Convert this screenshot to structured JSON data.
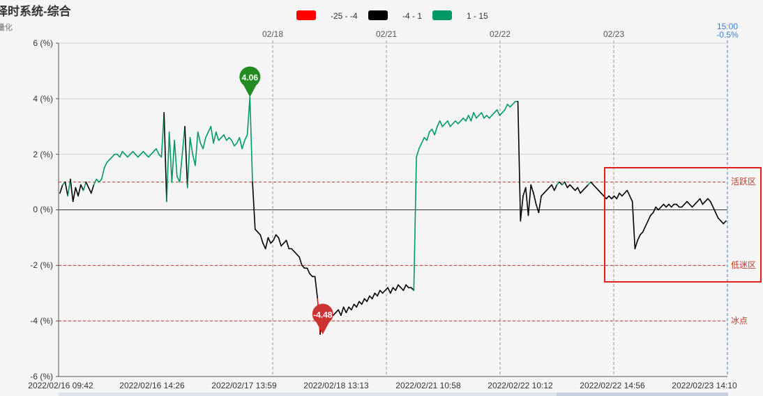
{
  "chart_data": {
    "type": "line",
    "title": "择时系统-综合",
    "subtitle": "量化",
    "legend": {
      "placement": "top-center",
      "items": [
        {
          "label": "-25 - -4",
          "color": "#ff0000"
        },
        {
          "label": "-4 - 1",
          "color": "#000000"
        },
        {
          "label": "1 - 15",
          "color": "#009966"
        }
      ]
    },
    "y_axis": {
      "range": [
        -6,
        6
      ],
      "ticks": [
        6,
        4,
        2,
        0,
        -2,
        -4,
        -6
      ],
      "tick_labels": [
        "6 (%)",
        "4 (%)",
        "2 (%)",
        "0 (%)",
        "-2 (%)",
        "-4 (%)",
        "-6 (%)"
      ]
    },
    "x_axis_labels": [
      "2022/02/16 09:42",
      "2022/02/16 14:26",
      "2022/02/17 13:59",
      "2022/02/18 13:13",
      "2022/02/21 10:58",
      "2022/02/22 10:12",
      "2022/02/22 14:56",
      "2022/02/23 14:10"
    ],
    "top_labels": [
      "02/18",
      "02/21",
      "02/22",
      "02/23"
    ],
    "crosshair": {
      "time": "15:00",
      "value": "-0.5%",
      "color": "#3a7fd5"
    },
    "reference_lines": [
      {
        "value": 1,
        "label": "活跃区",
        "color": "#c0392b"
      },
      {
        "value": -2,
        "label": "低迷区",
        "color": "#c0392b"
      },
      {
        "value": -4,
        "label": "冰点",
        "color": "#c0392b"
      }
    ],
    "markers": [
      {
        "label": "4.06",
        "value": 4.06,
        "index": 73,
        "color": "#228b22"
      },
      {
        "label": "-4.48",
        "value": -4.48,
        "index": 101,
        "color": "#cc3333"
      }
    ],
    "highlight_box": {
      "color": "#e0201b"
    },
    "series": [
      {
        "color_bands": [
          {
            "min": -25,
            "max": -4,
            "color": "#ff0000"
          },
          {
            "min": -4,
            "max": 1,
            "color": "#000000"
          },
          {
            "min": 1,
            "max": 15,
            "color": "#009966"
          }
        ],
        "values": [
          0.6,
          0.9,
          1.0,
          0.5,
          1.1,
          0.3,
          0.8,
          0.5,
          0.9,
          0.7,
          1.0,
          0.8,
          0.6,
          0.9,
          1.1,
          1.0,
          1.1,
          1.5,
          1.7,
          1.8,
          1.9,
          2.0,
          2.0,
          1.9,
          2.1,
          2.0,
          1.9,
          2.0,
          2.1,
          2.0,
          1.9,
          2.0,
          2.1,
          2.0,
          1.9,
          2.0,
          2.1,
          2.2,
          2.0,
          1.9,
          3.5,
          0.3,
          2.8,
          1.0,
          2.5,
          1.2,
          1.0,
          2.0,
          3.0,
          0.8,
          2.6,
          2.0,
          1.6,
          2.8,
          2.4,
          2.2,
          2.6,
          2.8,
          3.0,
          2.4,
          2.8,
          2.5,
          2.6,
          2.7,
          2.5,
          2.6,
          2.5,
          2.3,
          2.4,
          2.6,
          2.2,
          2.5,
          2.7,
          4.06,
          1.0,
          -0.7,
          -0.8,
          -0.9,
          -1.2,
          -1.4,
          -1.0,
          -1.2,
          -1.1,
          -0.9,
          -1.0,
          -1.3,
          -1.2,
          -1.1,
          -1.4,
          -1.4,
          -1.5,
          -1.6,
          -1.7,
          -2.0,
          -2.1,
          -2.1,
          -2.3,
          -2.4,
          -2.4,
          -3.2,
          -4.48,
          -3.6,
          -4.0,
          -3.9,
          -3.7,
          -3.8,
          -3.7,
          -3.6,
          -3.8,
          -3.5,
          -3.7,
          -3.5,
          -3.6,
          -3.4,
          -3.5,
          -3.3,
          -3.4,
          -3.2,
          -3.3,
          -3.1,
          -3.2,
          -3.0,
          -3.1,
          -2.9,
          -3.0,
          -2.9,
          -2.8,
          -3.0,
          -2.8,
          -2.9,
          -2.7,
          -2.8,
          -2.9,
          -2.7,
          -2.8,
          -2.8,
          -2.9,
          1.9,
          2.2,
          2.4,
          2.6,
          2.5,
          2.8,
          2.9,
          2.7,
          3.0,
          3.2,
          3.0,
          3.1,
          3.2,
          3.0,
          3.1,
          3.2,
          3.1,
          3.2,
          3.3,
          3.2,
          3.4,
          3.2,
          3.5,
          3.3,
          3.4,
          3.5,
          3.3,
          3.4,
          3.3,
          3.4,
          3.5,
          3.6,
          3.4,
          3.5,
          3.6,
          3.8,
          3.7,
          3.8,
          3.9,
          3.9,
          -0.4,
          0.5,
          0.8,
          -0.2,
          0.9,
          0.6,
          0.2,
          -0.1,
          0.5,
          0.6,
          0.7,
          0.8,
          0.9,
          0.7,
          0.9,
          1.0,
          0.9,
          1.0,
          0.8,
          0.9,
          0.8,
          0.7,
          0.8,
          0.6,
          0.7,
          0.8,
          0.9,
          1.0,
          0.9,
          0.8,
          0.7,
          0.6,
          0.5,
          0.4,
          0.5,
          0.4,
          0.5,
          0.4,
          0.6,
          0.5,
          0.6,
          0.7,
          0.5,
          0.3,
          -1.4,
          -1.1,
          -0.9,
          -0.8,
          -0.6,
          -0.4,
          -0.2,
          -0.1,
          0.1,
          0.0,
          0.1,
          0.2,
          0.1,
          0.2,
          0.1,
          0.2,
          0.2,
          0.1,
          0.1,
          0.2,
          0.3,
          0.2,
          0.1,
          0.2,
          0.3,
          0.4,
          0.2,
          0.3,
          0.4,
          0.3,
          0.1,
          -0.1,
          -0.3,
          -0.4,
          -0.5,
          -0.4
        ]
      }
    ]
  }
}
